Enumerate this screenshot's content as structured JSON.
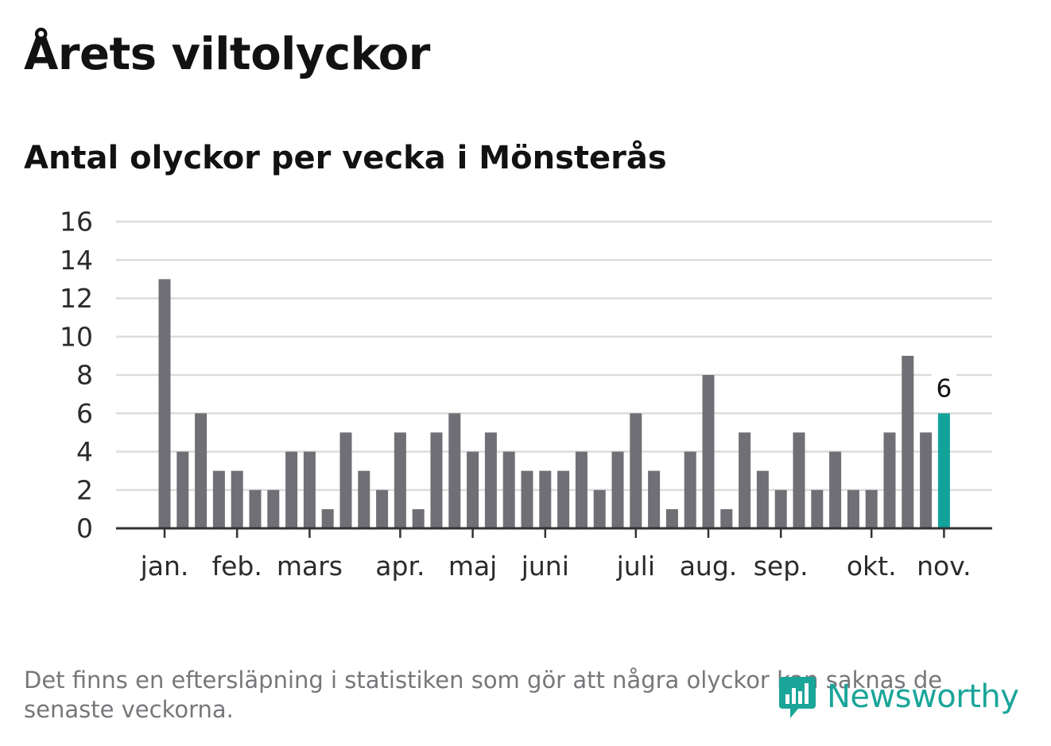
{
  "header": {
    "title": "Årets viltolyckor",
    "subtitle": "Antal olyckor per vecka i Mönsterås"
  },
  "chart_data": {
    "type": "bar",
    "title": "Årets viltolyckor",
    "subtitle": "Antal olyckor per vecka i Mönsterås",
    "xlabel": "",
    "ylabel": "",
    "ylim": [
      0,
      16
    ],
    "yticks": [
      0,
      2,
      4,
      6,
      8,
      10,
      12,
      14,
      16
    ],
    "grid": true,
    "values": [
      13,
      4,
      6,
      3,
      3,
      2,
      2,
      4,
      4,
      1,
      5,
      3,
      2,
      5,
      1,
      5,
      6,
      4,
      5,
      4,
      3,
      3,
      3,
      4,
      2,
      4,
      6,
      3,
      1,
      4,
      8,
      1,
      5,
      3,
      2,
      5,
      2,
      4,
      2,
      2,
      5,
      9,
      5,
      6
    ],
    "month_labels": [
      {
        "label": "jan.",
        "bar_index": 0
      },
      {
        "label": "feb.",
        "bar_index": 4
      },
      {
        "label": "mars",
        "bar_index": 8
      },
      {
        "label": "apr.",
        "bar_index": 13
      },
      {
        "label": "maj",
        "bar_index": 17
      },
      {
        "label": "juni",
        "bar_index": 21
      },
      {
        "label": "juli",
        "bar_index": 26
      },
      {
        "label": "aug.",
        "bar_index": 30
      },
      {
        "label": "sep.",
        "bar_index": 34
      },
      {
        "label": "okt.",
        "bar_index": 39
      },
      {
        "label": "nov.",
        "bar_index": 43
      }
    ],
    "highlight": {
      "bar_index": 43,
      "label": "6"
    },
    "colors": {
      "bar": "#6f6f75",
      "highlight": "#11a399",
      "grid": "#dcdcdc",
      "axis": "#333333",
      "tick_text": "#2b2b2b"
    }
  },
  "footer": {
    "note": "Det finns en eftersläpning i statistiken som gör att några olyckor kan saknas de senaste veckorna.",
    "brand": "Newsworthy",
    "brand_icon": "newsworthy-logo-icon",
    "brand_color": "#1aa599"
  }
}
